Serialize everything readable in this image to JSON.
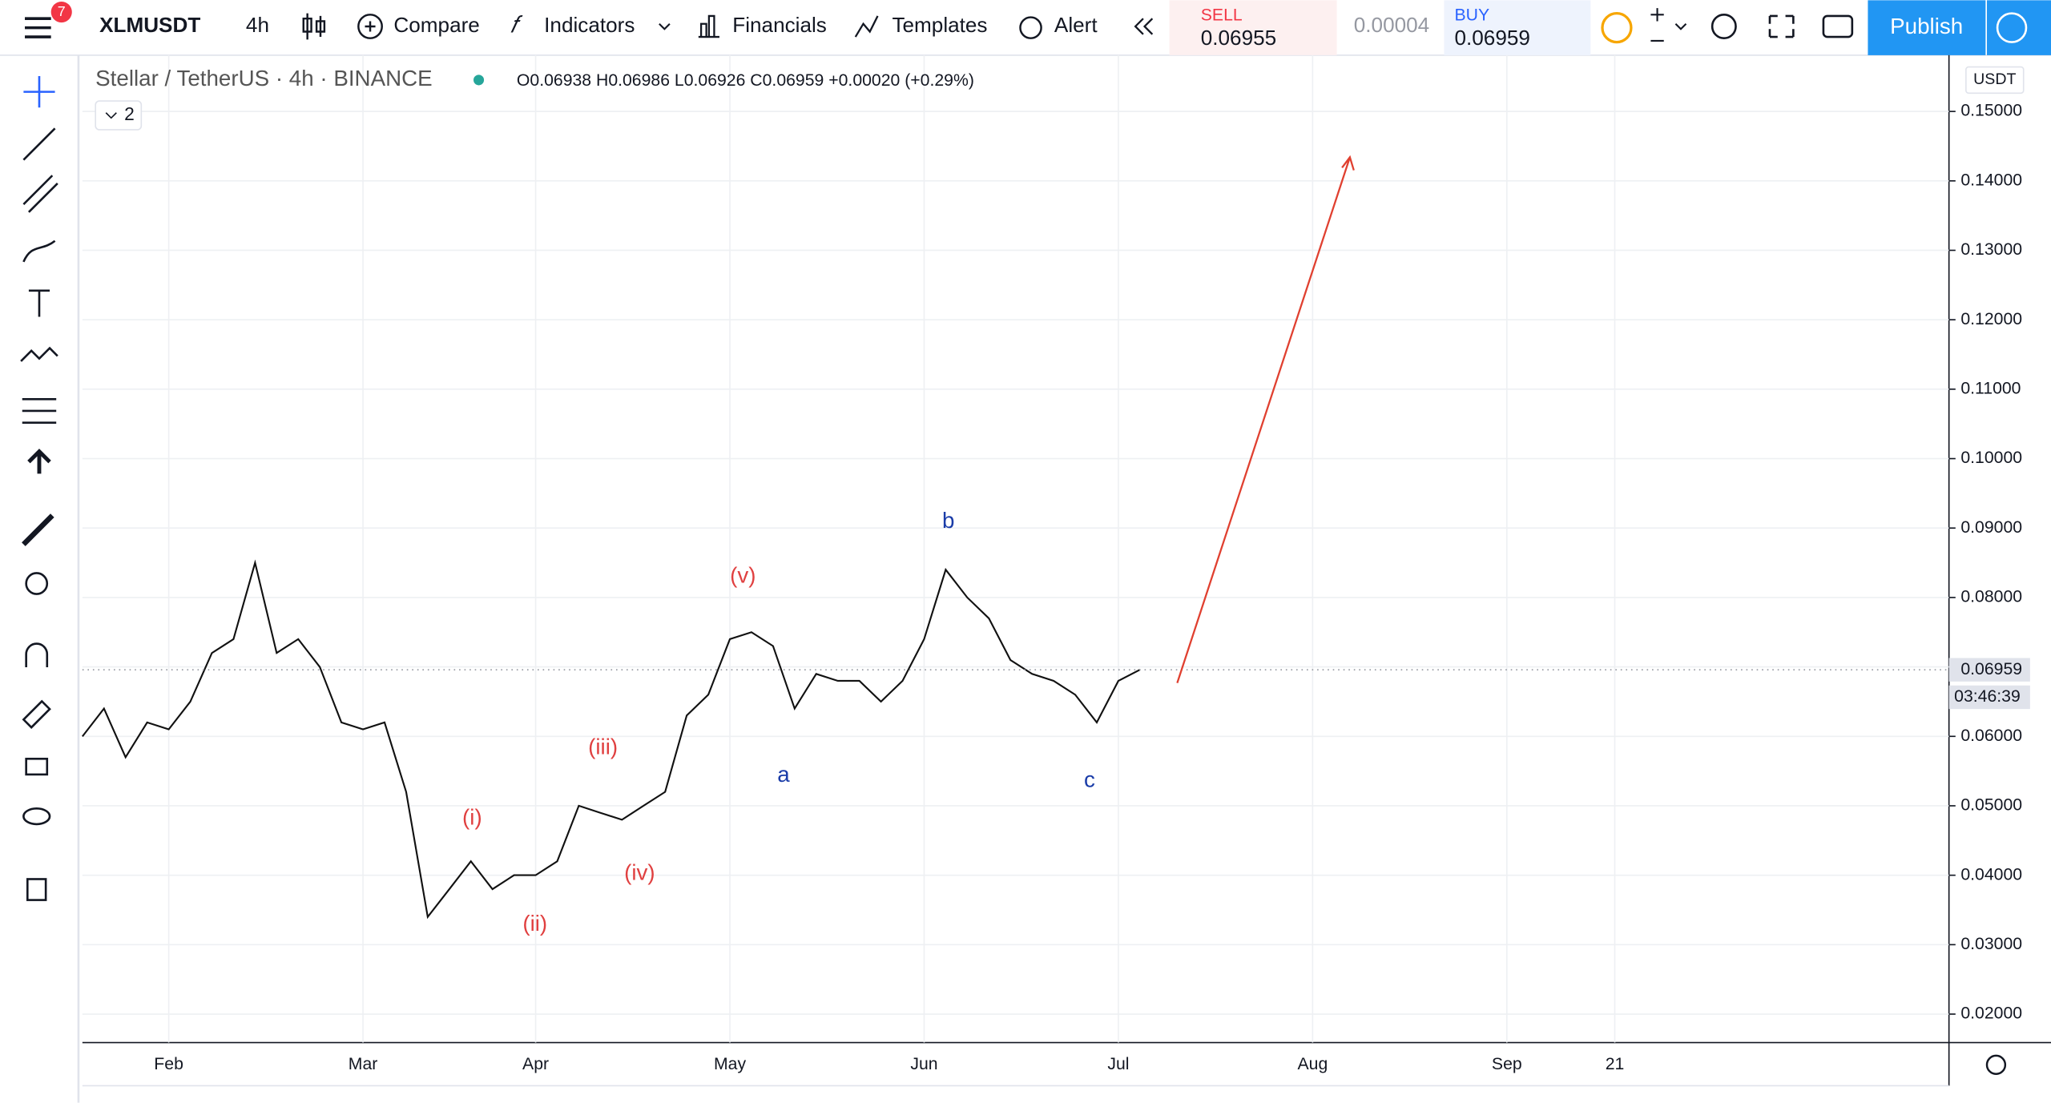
{
  "toolbar": {
    "badge": "7",
    "symbol": "XLMUSDT",
    "interval": "4h",
    "compare": "Compare",
    "indicators": "Indicators",
    "financials": "Financials",
    "templates": "Templates",
    "alert": "Alert",
    "publish": "Publish"
  },
  "trade": {
    "sell_label": "SELL",
    "sell_price": "0.06955",
    "spread": "0.00004",
    "buy_label": "BUY",
    "buy_price": "0.06959"
  },
  "legend": {
    "title": "Stellar / TetherUS · 4h · BINANCE",
    "ohlc": "O0.06938 H0.06986 L0.06926 C0.06959 +0.00020 (+0.29%)",
    "collapse": "2"
  },
  "chart_data": {
    "type": "line",
    "color": "#111111",
    "grid": true,
    "currency": "USDT",
    "categories": [
      null,
      null,
      null,
      null,
      "Feb",
      null,
      null,
      null,
      null,
      null,
      null,
      null,
      null,
      "Mar",
      null,
      null,
      null,
      null,
      null,
      null,
      null,
      "Apr",
      null,
      null,
      null,
      null,
      null,
      null,
      null,
      null,
      "May",
      null,
      null,
      null,
      null,
      null,
      null,
      null,
      null,
      "Jun",
      null,
      null,
      null,
      null,
      null,
      null,
      null,
      null,
      "Jul",
      null,
      null,
      null,
      null,
      null,
      null,
      null,
      null,
      "Aug",
      null,
      null,
      null,
      null,
      null,
      null,
      null,
      null,
      "Sep",
      null,
      null,
      null,
      null,
      "21",
      null,
      null,
      null,
      null,
      null,
      null,
      null,
      null,
      null,
      null,
      null,
      null,
      null,
      null,
      null
    ],
    "values": [
      0.06,
      0.064,
      0.057,
      0.062,
      0.061,
      0.065,
      0.072,
      0.074,
      0.085,
      0.072,
      0.074,
      0.07,
      0.062,
      0.061,
      0.062,
      0.052,
      0.034,
      0.038,
      0.042,
      0.038,
      0.04,
      0.04,
      0.042,
      0.05,
      0.049,
      0.048,
      0.05,
      0.052,
      0.063,
      0.066,
      0.074,
      0.075,
      0.073,
      0.064,
      0.069,
      0.068,
      0.068,
      0.065,
      0.068,
      0.074,
      0.084,
      0.08,
      0.077,
      0.071,
      0.069,
      0.068,
      0.066,
      0.062,
      0.068,
      0.06959,
      null,
      null,
      null,
      null,
      null,
      null,
      null,
      null,
      null,
      null,
      null,
      null,
      null,
      null,
      null,
      null,
      null,
      null,
      null,
      null,
      null,
      null,
      null,
      null,
      null,
      null,
      null,
      null,
      null,
      null,
      null,
      null,
      null,
      null,
      null,
      null,
      null
    ],
    "ylim": [
      0.0159,
      0.1581
    ],
    "yticks": [
      {
        "value": 0.02,
        "label": "0.02000"
      },
      {
        "value": 0.03,
        "label": "0.03000"
      },
      {
        "value": 0.04,
        "label": "0.04000"
      },
      {
        "value": 0.05,
        "label": "0.05000"
      },
      {
        "value": 0.06,
        "label": "0.06000"
      },
      {
        "value": 0.07,
        "label": "0.07000"
      },
      {
        "value": 0.08,
        "label": "0.08000"
      },
      {
        "value": 0.09,
        "label": "0.09000"
      },
      {
        "value": 0.1,
        "label": "0.10000"
      },
      {
        "value": 0.11,
        "label": "0.11000"
      },
      {
        "value": 0.12,
        "label": "0.12000"
      },
      {
        "value": 0.13,
        "label": "0.13000"
      },
      {
        "value": 0.14,
        "label": "0.14000"
      },
      {
        "value": 0.15,
        "label": "0.15000"
      }
    ],
    "price_line": {
      "value": 0.06959,
      "label": "0.06959"
    },
    "countdown": "03:46:39",
    "annotations": [
      "(i)",
      "(ii)",
      "(iii)",
      "(iv)",
      "(v)",
      "a",
      "b",
      "c"
    ]
  }
}
